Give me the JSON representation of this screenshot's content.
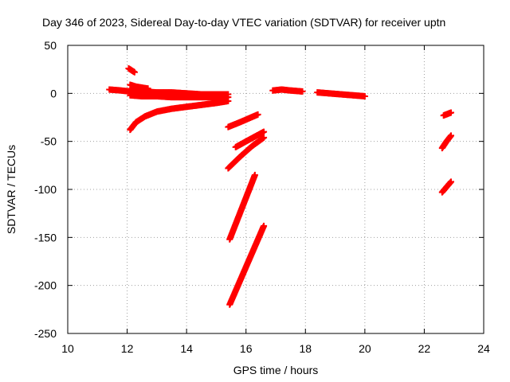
{
  "chart_data": {
    "type": "scatter",
    "title": "Day 346 of 2023, Sidereal Day-to-day VTEC variation (SDTVAR) for receiver uptn",
    "xlabel": "GPS time / hours",
    "ylabel": "SDTVAR / TECUs",
    "xlim": [
      10,
      24
    ],
    "ylim": [
      -250,
      50
    ],
    "xticks": [
      10,
      12,
      14,
      16,
      18,
      20,
      22,
      24
    ],
    "yticks": [
      -250,
      -200,
      -150,
      -100,
      -50,
      0,
      50
    ],
    "grid": true,
    "legend": "none",
    "series": [
      {
        "color": "#ff0000",
        "x": [
          11.4,
          11.8,
          12.1
        ],
        "y": [
          4,
          3,
          2
        ]
      },
      {
        "color": "#ff0000",
        "x": [
          12.05,
          12.25
        ],
        "y": [
          26,
          22
        ]
      },
      {
        "color": "#ff0000",
        "x": [
          12.1,
          12.3,
          12.5,
          12.7
        ],
        "y": [
          9,
          7,
          6,
          5
        ]
      },
      {
        "color": "#ff0000",
        "x": [
          12.1,
          12.5,
          13.0,
          13.5,
          14.0,
          14.5,
          15.0,
          15.4
        ],
        "y": [
          3,
          2,
          1,
          1,
          0,
          -1,
          -1,
          -1
        ]
      },
      {
        "color": "#ff0000",
        "x": [
          12.1,
          12.5,
          13.0,
          13.5,
          14.0,
          14.5,
          15.0,
          15.4
        ],
        "y": [
          -2,
          -3,
          -3,
          -4,
          -4,
          -4,
          -4,
          -4
        ]
      },
      {
        "color": "#ff0000",
        "x": [
          12.1,
          12.3,
          12.6,
          13.0,
          13.5,
          14.0,
          14.5,
          15.0,
          15.4
        ],
        "y": [
          -38,
          -30,
          -24,
          -19,
          -16,
          -14,
          -12,
          -10,
          -8
        ]
      },
      {
        "color": "#ff0000",
        "x": [
          15.4,
          15.8,
          16.4
        ],
        "y": [
          -35,
          -30,
          -22
        ]
      },
      {
        "color": "#ff0000",
        "x": [
          15.65,
          16.0,
          16.6
        ],
        "y": [
          -56,
          -50,
          -40
        ]
      },
      {
        "color": "#ff0000",
        "x": [
          15.4,
          15.8,
          16.2,
          16.6
        ],
        "y": [
          -78,
          -66,
          -55,
          -46
        ]
      },
      {
        "color": "#ff0000",
        "x": [
          15.45,
          16.3
        ],
        "y": [
          -152,
          -85
        ]
      },
      {
        "color": "#ff0000",
        "x": [
          15.45,
          16.6
        ],
        "y": [
          -220,
          -138
        ]
      },
      {
        "color": "#ff0000",
        "x": [
          16.9,
          17.2,
          17.5,
          17.9
        ],
        "y": [
          3,
          4,
          3,
          2
        ]
      },
      {
        "color": "#ff0000",
        "x": [
          18.4,
          18.8,
          19.2,
          19.6,
          20.0
        ],
        "y": [
          1,
          0,
          -1,
          -2,
          -3
        ]
      },
      {
        "color": "#ff0000",
        "x": [
          22.65,
          22.9
        ],
        "y": [
          -23,
          -20
        ]
      },
      {
        "color": "#ff0000",
        "x": [
          22.6,
          22.75,
          22.9
        ],
        "y": [
          -57,
          -50,
          -44
        ]
      },
      {
        "color": "#ff0000",
        "x": [
          22.6,
          22.9
        ],
        "y": [
          -103,
          -92
        ]
      }
    ]
  }
}
